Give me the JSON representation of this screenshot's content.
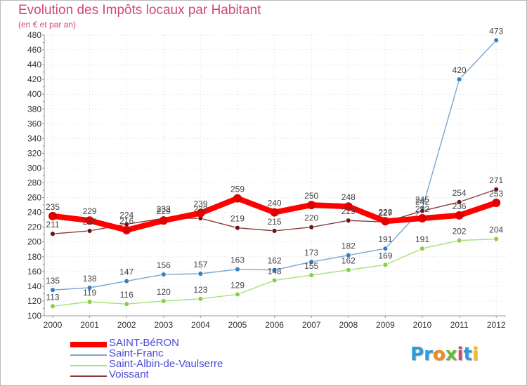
{
  "title": "Evolution des Impôts locaux par Habitant",
  "subtitle": "(en € et par an)",
  "logo": {
    "text": "Proxiti",
    "letters": [
      {
        "ch": "P",
        "color": "#2e9be0"
      },
      {
        "ch": "r",
        "color": "#2e9be0"
      },
      {
        "ch": "o",
        "color": "#f08a1c"
      },
      {
        "ch": "x",
        "color": "#6cb83a"
      },
      {
        "ch": "i",
        "color": "#d4486e"
      },
      {
        "ch": "t",
        "color": "#2e9be0"
      },
      {
        "ch": "i",
        "color": "#f0c020"
      }
    ]
  },
  "chart_data": {
    "type": "line",
    "title": "Evolution des Impôts locaux par Habitant",
    "ylabel": "",
    "xlabel": "",
    "ylim": [
      100,
      480
    ],
    "yticks": [
      100,
      120,
      140,
      160,
      180,
      200,
      220,
      240,
      260,
      280,
      300,
      320,
      340,
      360,
      380,
      400,
      420,
      440,
      460,
      480
    ],
    "grid": true,
    "legend_position": "bottom-left",
    "x": [
      "2000",
      "2001",
      "2002",
      "2003",
      "2004",
      "2005",
      "2006",
      "2007",
      "2008",
      "2009",
      "2010",
      "2011",
      "2012"
    ],
    "series": [
      {
        "name": "SAINT-BéRON",
        "color": "#ff0000",
        "legend_color": "#4a4ad9",
        "marker": "#e00000",
        "width": 8,
        "values": [
          235,
          229,
          216,
          229,
          239,
          259,
          240,
          250,
          248,
          228,
          232,
          236,
          253
        ]
      },
      {
        "name": "Saint-Franc",
        "color": "#7aa6cf",
        "legend_color": "#4a4ad9",
        "marker": "#3a80c0",
        "width": 1.4,
        "values": [
          135,
          138,
          147,
          156,
          157,
          163,
          162,
          173,
          182,
          191,
          245,
          420,
          473
        ]
      },
      {
        "name": "Saint-Albin-de-Vaulserre",
        "color": "#a6e07a",
        "legend_color": "#4a4ad9",
        "marker": "#86d04a",
        "width": 1.4,
        "values": [
          113,
          119,
          116,
          120,
          123,
          129,
          148,
          155,
          162,
          169,
          191,
          202,
          204
        ]
      },
      {
        "name": "Voissant",
        "color": "#8a3a3a",
        "legend_color": "#4a4ad9",
        "marker": "#6a1414",
        "width": 1.4,
        "values": [
          211,
          215,
          224,
          232,
          232,
          219,
          215,
          220,
          229,
          227,
          242,
          254,
          271
        ]
      }
    ]
  }
}
